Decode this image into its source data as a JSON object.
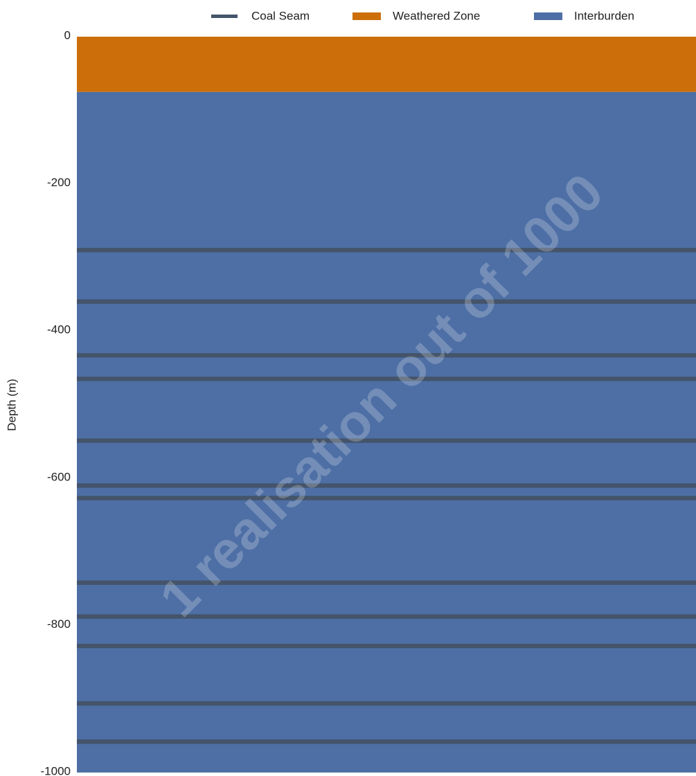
{
  "chart_data": {
    "type": "strata",
    "ylabel": "Depth (m)",
    "watermark": "1 realisation out of 1000",
    "ylim": [
      -1000,
      0
    ],
    "yticks": [
      0,
      -200,
      -400,
      -600,
      -800,
      -1000
    ],
    "seam_thickness": 6,
    "series": [
      {
        "name": "Coal Seam",
        "color": "#44546a",
        "values": [
          -290,
          -360,
          -433,
          -465,
          -549,
          -610,
          -627,
          -742,
          -788,
          -828,
          -906,
          -958
        ]
      },
      {
        "name": "Weathered Zone",
        "color": "#cc6f0a",
        "values": [
          0,
          -75
        ]
      },
      {
        "name": "Interburden",
        "color": "#4e6fa5",
        "values": [
          -75,
          -1000
        ]
      }
    ]
  }
}
